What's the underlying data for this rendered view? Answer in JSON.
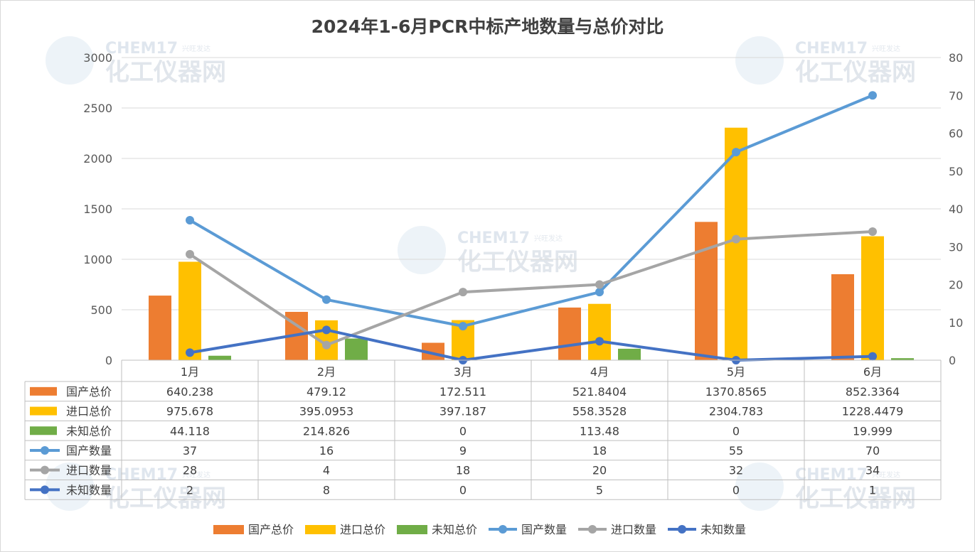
{
  "chart_data": {
    "title": "2024年1-6月PCR中标产地数量与总价对比",
    "type": "bar",
    "categories": [
      "1月",
      "2月",
      "3月",
      "4月",
      "5月",
      "6月"
    ],
    "y_left": {
      "min": 0,
      "max": 3000,
      "ticks": [
        "0",
        "500",
        "1000",
        "1500",
        "2000",
        "2500",
        "3000"
      ]
    },
    "y_right": {
      "min": 0,
      "max": 80,
      "ticks": [
        "0",
        "10",
        "20",
        "30",
        "40",
        "50",
        "60",
        "70",
        "80"
      ]
    },
    "grid": true,
    "legend_position": "bottom",
    "data_table": true,
    "series": [
      {
        "name": "国产总价",
        "type": "bar",
        "axis": "left",
        "color": "#ED7D31",
        "values": [
          640.238,
          479.12,
          172.511,
          521.8404,
          1370.8565,
          852.3364
        ],
        "labels": [
          "640.238",
          "479.12",
          "172.511",
          "521.8404",
          "1370.8565",
          "852.3364"
        ]
      },
      {
        "name": "进口总价",
        "type": "bar",
        "axis": "left",
        "color": "#FFC000",
        "values": [
          975.678,
          395.0953,
          397.187,
          558.3528,
          2304.783,
          1228.4479
        ],
        "labels": [
          "975.678",
          "395.0953",
          "397.187",
          "558.3528",
          "2304.783",
          "1228.4479"
        ]
      },
      {
        "name": "未知总价",
        "type": "bar",
        "axis": "left",
        "color": "#70AD47",
        "values": [
          44.118,
          214.826,
          0,
          113.48,
          0,
          19.999
        ],
        "labels": [
          "44.118",
          "214.826",
          "0",
          "113.48",
          "0",
          "19.999"
        ]
      },
      {
        "name": "国产数量",
        "type": "line",
        "axis": "right",
        "color": "#5B9BD5",
        "values": [
          37,
          16,
          9,
          18,
          55,
          70
        ],
        "labels": [
          "37",
          "16",
          "9",
          "18",
          "55",
          "70"
        ]
      },
      {
        "name": "进口数量",
        "type": "line",
        "axis": "right",
        "color": "#A5A5A5",
        "values": [
          28,
          4,
          18,
          20,
          32,
          34
        ],
        "labels": [
          "28",
          "4",
          "18",
          "20",
          "32",
          "34"
        ]
      },
      {
        "name": "未知数量",
        "type": "line",
        "axis": "right",
        "color": "#4472C4",
        "values": [
          2,
          8,
          0,
          5,
          0,
          1
        ],
        "labels": [
          "2",
          "8",
          "0",
          "5",
          "0",
          "1"
        ]
      }
    ]
  },
  "watermark": {
    "brand": "CHEM17",
    "slogan": "兴旺发达",
    "name": "化工仪器网"
  }
}
